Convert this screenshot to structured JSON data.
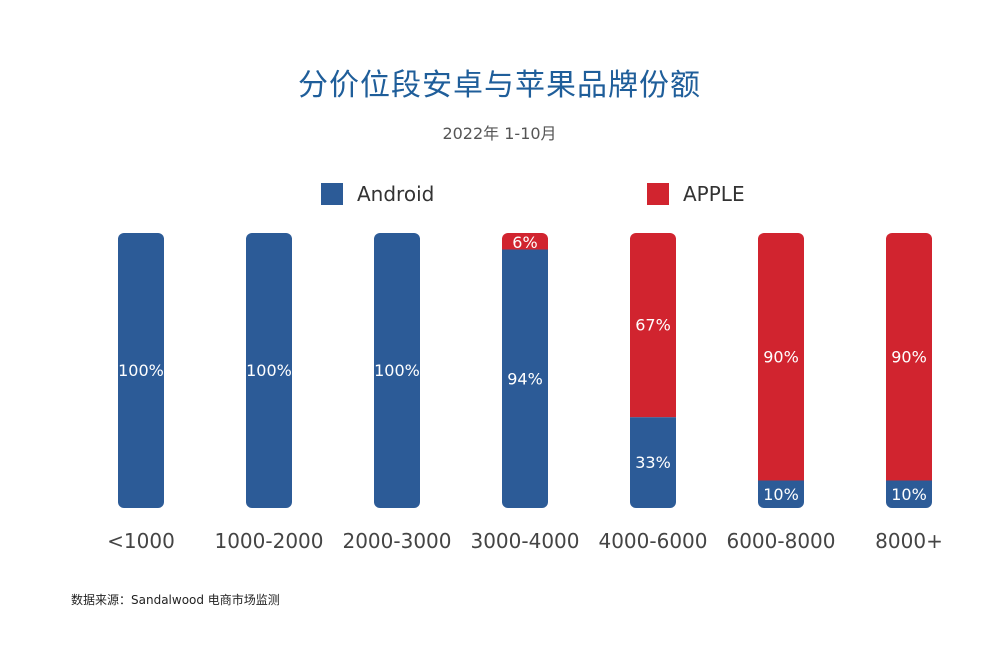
{
  "title": "分价位段安卓与苹果品牌份额",
  "subtitle": "2022年 1-10月",
  "source": "数据来源：Sandalwood 电商市场监测",
  "colors": {
    "android": "#2c5b97",
    "apple": "#d1242f",
    "label": "#ffffff",
    "axis_text": "#444444"
  },
  "legend": {
    "android": "Android",
    "apple": "APPLE"
  },
  "chart_data": {
    "type": "bar",
    "stacked": true,
    "percent": true,
    "categories": [
      "<1000",
      "1000-2000",
      "2000-3000",
      "3000-4000",
      "4000-6000",
      "6000-8000",
      "8000+"
    ],
    "series": [
      {
        "name": "Android",
        "values": [
          100,
          100,
          100,
          94,
          33,
          10,
          10
        ]
      },
      {
        "name": "APPLE",
        "values": [
          0,
          0,
          0,
          6,
          67,
          90,
          90
        ]
      }
    ],
    "data_labels": {
      "Android": [
        "100%",
        "100%",
        "100%",
        "94%",
        "33%",
        "10%",
        "10%"
      ],
      "APPLE": [
        "",
        "",
        "",
        "6%",
        "67%",
        "90%",
        "90%"
      ]
    },
    "ylim": [
      0,
      100
    ],
    "grid": false,
    "legend_position": "top-center"
  }
}
